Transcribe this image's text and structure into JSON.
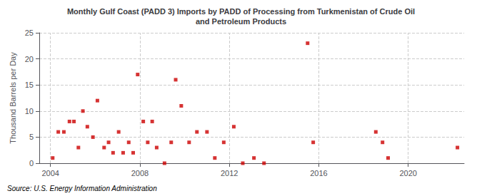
{
  "chart_data": {
    "type": "scatter",
    "title": "Monthly Gulf Coast (PADD 3) Imports by PADD of Processing from Turkmenistan of Crude Oil\nand Petroleum Products",
    "ylabel": "Thousand Barrels per Day",
    "annotation": "Source: U.S. Energy Information Administration",
    "color": "#cc0000",
    "marker": "square",
    "grid": true,
    "xlim": [
      2003.5,
      2022.5
    ],
    "xticks": [
      2004,
      2008,
      2012,
      2016,
      2020
    ],
    "ylim": [
      0,
      25
    ],
    "yticks": [
      0,
      5,
      10,
      15,
      20,
      25
    ],
    "x": [
      2004.1,
      2004.35,
      2004.6,
      2004.85,
      2005.05,
      2005.25,
      2005.45,
      2005.65,
      2005.9,
      2006.1,
      2006.4,
      2006.6,
      2006.8,
      2007.05,
      2007.25,
      2007.5,
      2007.7,
      2007.9,
      2008.15,
      2008.35,
      2008.55,
      2008.75,
      2009.1,
      2009.4,
      2009.6,
      2009.85,
      2010.2,
      2010.55,
      2011.0,
      2011.35,
      2011.75,
      2012.2,
      2012.6,
      2013.1,
      2013.55,
      2015.5,
      2015.75,
      2018.55,
      2018.85,
      2019.1,
      2022.2
    ],
    "values": [
      1,
      6,
      6,
      8,
      8,
      3,
      10,
      7,
      5,
      12,
      3,
      4,
      2,
      6,
      2,
      4,
      2,
      17,
      8,
      4,
      8,
      3,
      0,
      4,
      16,
      11,
      4,
      6,
      6,
      1,
      4,
      7,
      0,
      1,
      0,
      23,
      4,
      6,
      4,
      1,
      3
    ]
  }
}
